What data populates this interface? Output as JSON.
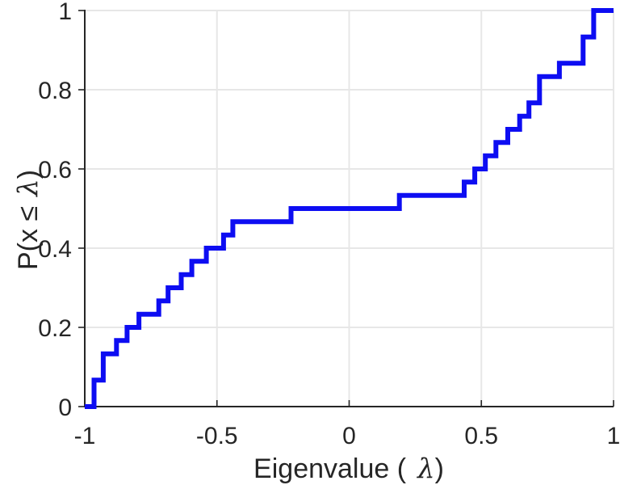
{
  "chart_data": {
    "type": "line",
    "subtype": "ecdf-step",
    "title": "",
    "xlabel": {
      "prefix": "Eigenvalue (",
      "symbol": "λ",
      "suffix": ")",
      "full": "Eigenvalue ( λ)"
    },
    "ylabel": {
      "prefix": "P(x ≤",
      "symbol": "λ",
      "suffix": ")",
      "full": "P(x ≤ λ)"
    },
    "xlim": [
      -1,
      1
    ],
    "ylim": [
      0,
      1
    ],
    "grid": true,
    "legend_position": "none",
    "n_samples": 30,
    "step_height": 0.0333,
    "x_ticks": [
      {
        "v": -1,
        "label": "-1"
      },
      {
        "v": -0.5,
        "label": "-0.5"
      },
      {
        "v": 0,
        "label": "0"
      },
      {
        "v": 0.5,
        "label": "0.5"
      },
      {
        "v": 1,
        "label": "1"
      }
    ],
    "y_ticks": [
      {
        "v": 0,
        "label": "0"
      },
      {
        "v": 0.2,
        "label": "0.2"
      },
      {
        "v": 0.4,
        "label": "0.4"
      },
      {
        "v": 0.6,
        "label": "0.6"
      },
      {
        "v": 0.8,
        "label": "0.8"
      },
      {
        "v": 1,
        "label": "1"
      }
    ],
    "steps": [
      [
        -0.965,
        0.0667
      ],
      [
        -0.93,
        0.1333
      ],
      [
        -0.88,
        0.1667
      ],
      [
        -0.84,
        0.2
      ],
      [
        -0.795,
        0.2333
      ],
      [
        -0.72,
        0.2667
      ],
      [
        -0.685,
        0.3
      ],
      [
        -0.635,
        0.3333
      ],
      [
        -0.595,
        0.3667
      ],
      [
        -0.54,
        0.4
      ],
      [
        -0.475,
        0.4333
      ],
      [
        -0.44,
        0.4667
      ],
      [
        -0.22,
        0.5
      ],
      [
        0.19,
        0.5333
      ],
      [
        0.435,
        0.5667
      ],
      [
        0.475,
        0.6
      ],
      [
        0.515,
        0.6333
      ],
      [
        0.555,
        0.6667
      ],
      [
        0.6,
        0.7
      ],
      [
        0.645,
        0.7333
      ],
      [
        0.68,
        0.7667
      ],
      [
        0.72,
        0.8333
      ],
      [
        0.795,
        0.8667
      ],
      [
        0.885,
        0.9333
      ],
      [
        0.925,
        1.0
      ]
    ],
    "line_color": "#0d0df2",
    "axis_color": "#262626",
    "grid_color": "#e7e7e7",
    "background_color": "#ffffff"
  }
}
